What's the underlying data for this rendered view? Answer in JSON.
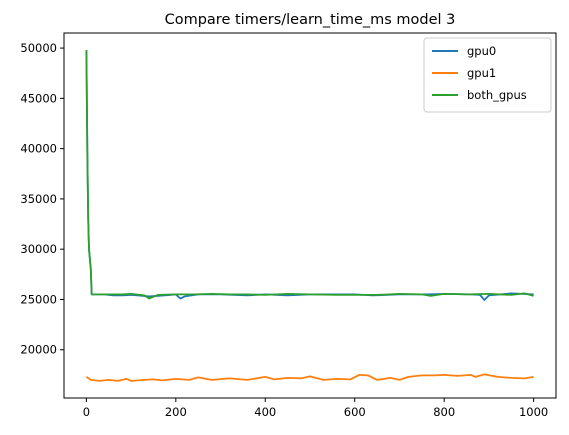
{
  "chart_data": {
    "type": "line",
    "title": "Compare timers/learn_time_ms model 3",
    "xlabel": "",
    "ylabel": "",
    "xlim": [
      -50,
      1050
    ],
    "ylim": [
      15200,
      51500
    ],
    "x_ticks": [
      0,
      200,
      400,
      600,
      800,
      1000
    ],
    "y_ticks": [
      20000,
      25000,
      30000,
      35000,
      40000,
      45000,
      50000
    ],
    "grid": false,
    "legend_position": "top-right",
    "series": [
      {
        "name": "gpu0",
        "color": "#1f77b4",
        "points": [
          [
            0,
            49800
          ],
          [
            2,
            40000
          ],
          [
            4,
            33000
          ],
          [
            6,
            30000
          ],
          [
            10,
            28000
          ],
          [
            12,
            25500
          ],
          [
            40,
            25500
          ],
          [
            60,
            25400
          ],
          [
            80,
            25400
          ],
          [
            100,
            25450
          ],
          [
            140,
            25300
          ],
          [
            160,
            25350
          ],
          [
            190,
            25450
          ],
          [
            200,
            25500
          ],
          [
            210,
            25100
          ],
          [
            220,
            25300
          ],
          [
            250,
            25500
          ],
          [
            300,
            25500
          ],
          [
            360,
            25400
          ],
          [
            400,
            25500
          ],
          [
            450,
            25400
          ],
          [
            500,
            25500
          ],
          [
            560,
            25500
          ],
          [
            600,
            25500
          ],
          [
            640,
            25400
          ],
          [
            700,
            25500
          ],
          [
            760,
            25500
          ],
          [
            800,
            25550
          ],
          [
            860,
            25500
          ],
          [
            880,
            25450
          ],
          [
            890,
            24950
          ],
          [
            900,
            25400
          ],
          [
            950,
            25600
          ],
          [
            1000,
            25500
          ]
        ]
      },
      {
        "name": "gpu1",
        "color": "#ff7f0e",
        "points": [
          [
            0,
            17300
          ],
          [
            10,
            17000
          ],
          [
            30,
            16900
          ],
          [
            50,
            17000
          ],
          [
            70,
            16900
          ],
          [
            90,
            17100
          ],
          [
            100,
            16900
          ],
          [
            130,
            17000
          ],
          [
            150,
            17050
          ],
          [
            170,
            16950
          ],
          [
            200,
            17100
          ],
          [
            230,
            17000
          ],
          [
            250,
            17250
          ],
          [
            280,
            17000
          ],
          [
            320,
            17150
          ],
          [
            360,
            17000
          ],
          [
            400,
            17300
          ],
          [
            420,
            17050
          ],
          [
            450,
            17200
          ],
          [
            480,
            17150
          ],
          [
            500,
            17350
          ],
          [
            530,
            17000
          ],
          [
            560,
            17100
          ],
          [
            590,
            17050
          ],
          [
            610,
            17500
          ],
          [
            630,
            17450
          ],
          [
            650,
            17000
          ],
          [
            680,
            17200
          ],
          [
            700,
            17000
          ],
          [
            720,
            17300
          ],
          [
            750,
            17450
          ],
          [
            780,
            17450
          ],
          [
            800,
            17500
          ],
          [
            830,
            17400
          ],
          [
            860,
            17500
          ],
          [
            870,
            17300
          ],
          [
            890,
            17550
          ],
          [
            920,
            17300
          ],
          [
            950,
            17200
          ],
          [
            980,
            17150
          ],
          [
            1000,
            17300
          ]
        ]
      },
      {
        "name": "both_gpus",
        "color": "#2ca02c",
        "points": [
          [
            0,
            49800
          ],
          [
            2,
            40000
          ],
          [
            4,
            33000
          ],
          [
            6,
            30000
          ],
          [
            10,
            28000
          ],
          [
            12,
            25500
          ],
          [
            40,
            25500
          ],
          [
            80,
            25500
          ],
          [
            100,
            25550
          ],
          [
            130,
            25400
          ],
          [
            140,
            25100
          ],
          [
            160,
            25450
          ],
          [
            200,
            25500
          ],
          [
            240,
            25500
          ],
          [
            280,
            25550
          ],
          [
            320,
            25500
          ],
          [
            360,
            25500
          ],
          [
            400,
            25450
          ],
          [
            450,
            25550
          ],
          [
            500,
            25500
          ],
          [
            560,
            25450
          ],
          [
            600,
            25450
          ],
          [
            650,
            25450
          ],
          [
            700,
            25550
          ],
          [
            750,
            25500
          ],
          [
            770,
            25350
          ],
          [
            800,
            25550
          ],
          [
            850,
            25500
          ],
          [
            900,
            25550
          ],
          [
            950,
            25450
          ],
          [
            980,
            25600
          ],
          [
            1000,
            25350
          ]
        ]
      }
    ]
  }
}
